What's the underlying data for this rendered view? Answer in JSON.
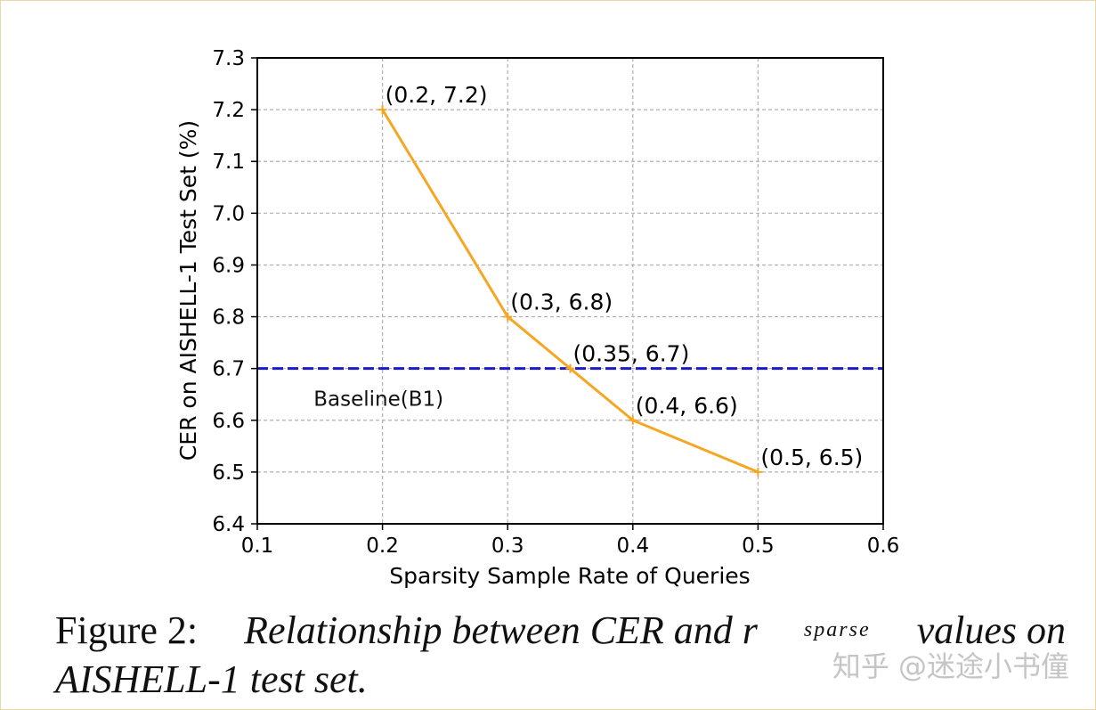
{
  "chart_data": {
    "type": "line",
    "xlabel": "Sparsity Sample Rate of Queries",
    "ylabel": "CER on AISHELL-1 Test Set (%)",
    "xlim": [
      0.1,
      0.6
    ],
    "ylim": [
      6.4,
      7.3
    ],
    "grid": true,
    "x_ticks": [
      0.1,
      0.2,
      0.3,
      0.4,
      0.5,
      0.6
    ],
    "x_tick_labels": [
      "0.1",
      "0.2",
      "0.3",
      "0.4",
      "0.5",
      "0.6"
    ],
    "y_ticks": [
      6.4,
      6.5,
      6.6,
      6.7,
      6.8,
      6.9,
      7.0,
      7.1,
      7.2,
      7.3
    ],
    "y_tick_labels": [
      "6.4",
      "6.5",
      "6.6",
      "6.7",
      "6.8",
      "6.9",
      "7.0",
      "7.1",
      "7.2",
      "7.3"
    ],
    "series": [
      {
        "name": "CER",
        "color": "#f5a623",
        "x": [
          0.2,
          0.3,
          0.35,
          0.4,
          0.5
        ],
        "y": [
          7.2,
          6.8,
          6.7,
          6.6,
          6.5
        ],
        "labels": [
          "(0.2, 7.2)",
          "(0.3, 6.8)",
          "(0.35, 6.7)",
          "(0.4, 6.6)",
          "(0.5, 6.5)"
        ]
      }
    ],
    "baseline": {
      "name": "Baseline(B1)",
      "value": 6.7,
      "color": "#1a1acc",
      "style": "dashed"
    }
  },
  "caption": {
    "prefix": "Figure 2:",
    "text_before": "Relationship between CER and r",
    "subscript": "sparse",
    "text_after_line1": "values on",
    "line2": "AISHELL-1 test set."
  },
  "watermark": "知乎 @迷途小书僮"
}
